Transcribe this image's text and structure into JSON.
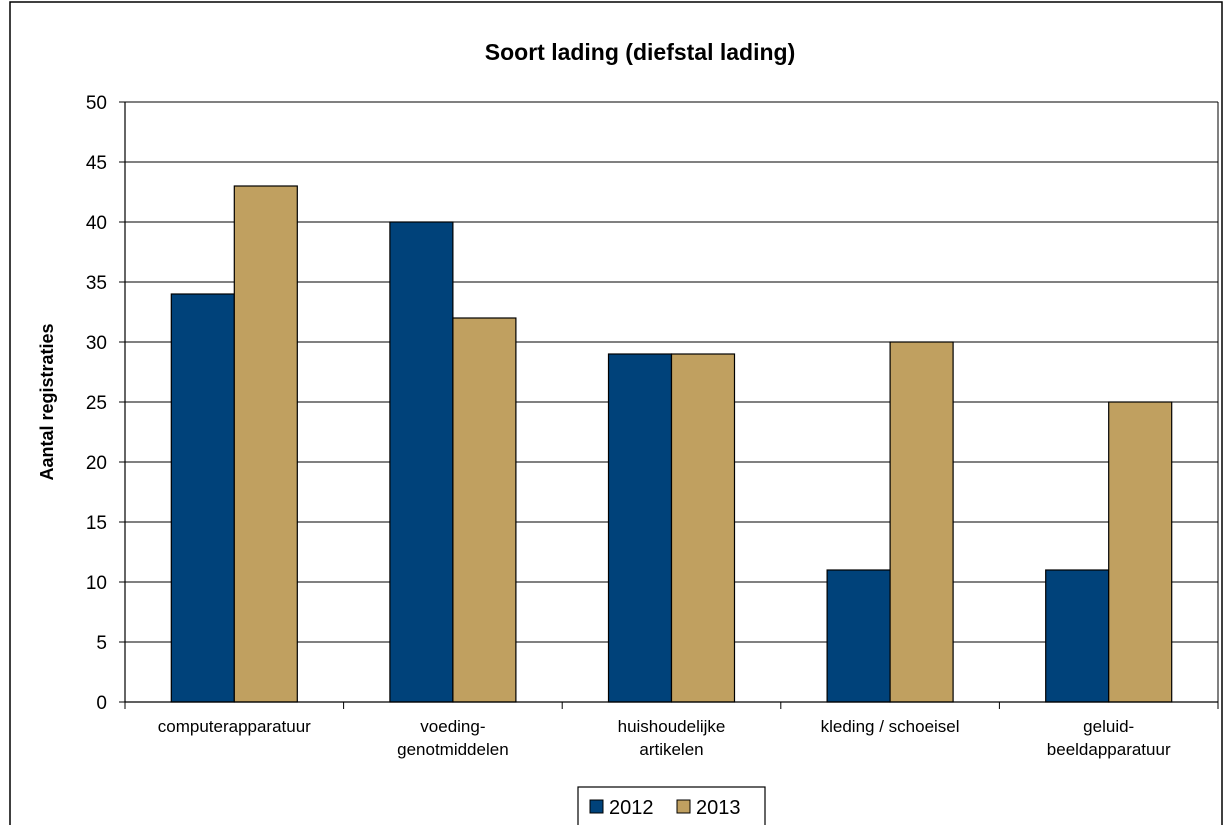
{
  "chart_data": {
    "type": "bar",
    "title": "Soort lading (diefstal lading)",
    "ylabel": "Aantal registraties",
    "xlabel": "",
    "ylim": [
      0,
      50
    ],
    "yticks": [
      0,
      5,
      10,
      15,
      20,
      25,
      30,
      35,
      40,
      45,
      50
    ],
    "grid": true,
    "legend_position": "bottom",
    "categories": [
      [
        "computerapparatuur"
      ],
      [
        "voeding-",
        "genotmiddelen"
      ],
      [
        "huishoudelijke",
        "artikelen"
      ],
      [
        "kleding / schoeisel"
      ],
      [
        "geluid-",
        "beeldapparatuur"
      ]
    ],
    "series": [
      {
        "name": "2012",
        "color": "#00427a",
        "values": [
          34,
          40,
          29,
          11,
          11
        ]
      },
      {
        "name": "2013",
        "color": "#c0a060",
        "values": [
          43,
          32,
          29,
          30,
          25
        ]
      }
    ]
  }
}
